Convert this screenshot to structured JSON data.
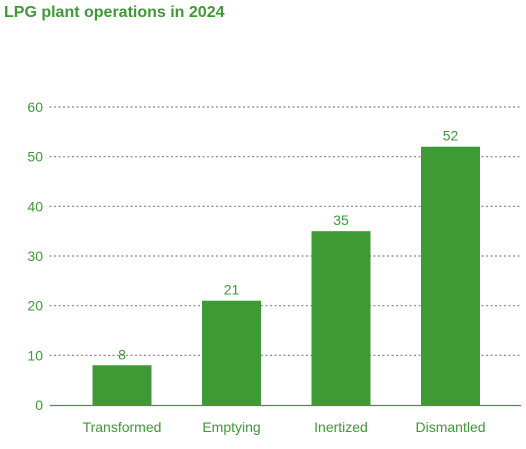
{
  "chart_data": {
    "type": "bar",
    "title": "LPG plant operations in 2024",
    "categories": [
      "Transformed",
      "Emptying",
      "Inertized",
      "Dismantled"
    ],
    "values": [
      8,
      21,
      35,
      52
    ],
    "xlabel": "",
    "ylabel": "",
    "ylim": [
      0,
      60
    ],
    "yticks": [
      0,
      10,
      20,
      30,
      40,
      50,
      60
    ],
    "grid": true,
    "legend": "none",
    "data_labels": true,
    "colors": {
      "bar": "#3e9a35",
      "text": "#3e9a35",
      "grid": "#7f7f7f",
      "axis": "#3e9a35"
    }
  }
}
